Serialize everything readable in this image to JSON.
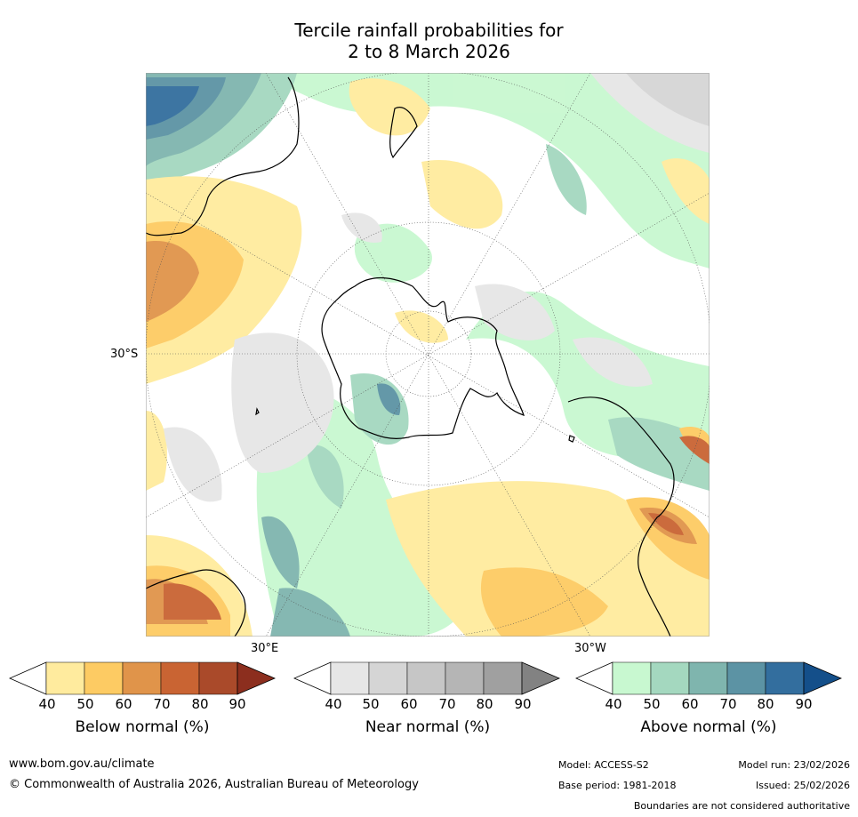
{
  "title_line1": "Tercile rainfall probabilities for",
  "title_line2": "2 to 8 March 2026",
  "map": {
    "lat_label": "30°S",
    "lon_label_left": "30°E",
    "lon_label_right": "30°W"
  },
  "legend": [
    {
      "name": "below",
      "title": "Below normal (%)",
      "ticks": [
        "40",
        "50",
        "60",
        "70",
        "80",
        "90"
      ],
      "colors": [
        "#ffffff",
        "#ffeb9e",
        "#fdcb63",
        "#e0944a",
        "#c96433",
        "#aa4a2a",
        "#8c2e1e"
      ]
    },
    {
      "name": "near",
      "title": "Near normal (%)",
      "ticks": [
        "40",
        "50",
        "60",
        "70",
        "80",
        "90"
      ],
      "colors": [
        "#ffffff",
        "#e6e6e6",
        "#d5d5d5",
        "#c6c6c6",
        "#b5b5b5",
        "#a0a0a0",
        "#828282"
      ]
    },
    {
      "name": "above",
      "title": "Above normal (%)",
      "ticks": [
        "40",
        "50",
        "60",
        "70",
        "80",
        "90"
      ],
      "colors": [
        "#ffffff",
        "#c8f8d0",
        "#a4d8bf",
        "#7fb5ae",
        "#5c93a4",
        "#336e9e",
        "#144f8a"
      ]
    }
  ],
  "footer": {
    "website": "www.bom.gov.au/climate",
    "copyright": "© Commonwealth of Australia 2026, Australian Bureau of Meteorology",
    "model": "Model: ACCESS-S2",
    "base_period": "Base period: 1981-2018",
    "model_run": "Model run: 23/02/2026",
    "issued": "Issued: 25/02/2026",
    "disclaimer": "Boundaries are not considered authoritative"
  }
}
